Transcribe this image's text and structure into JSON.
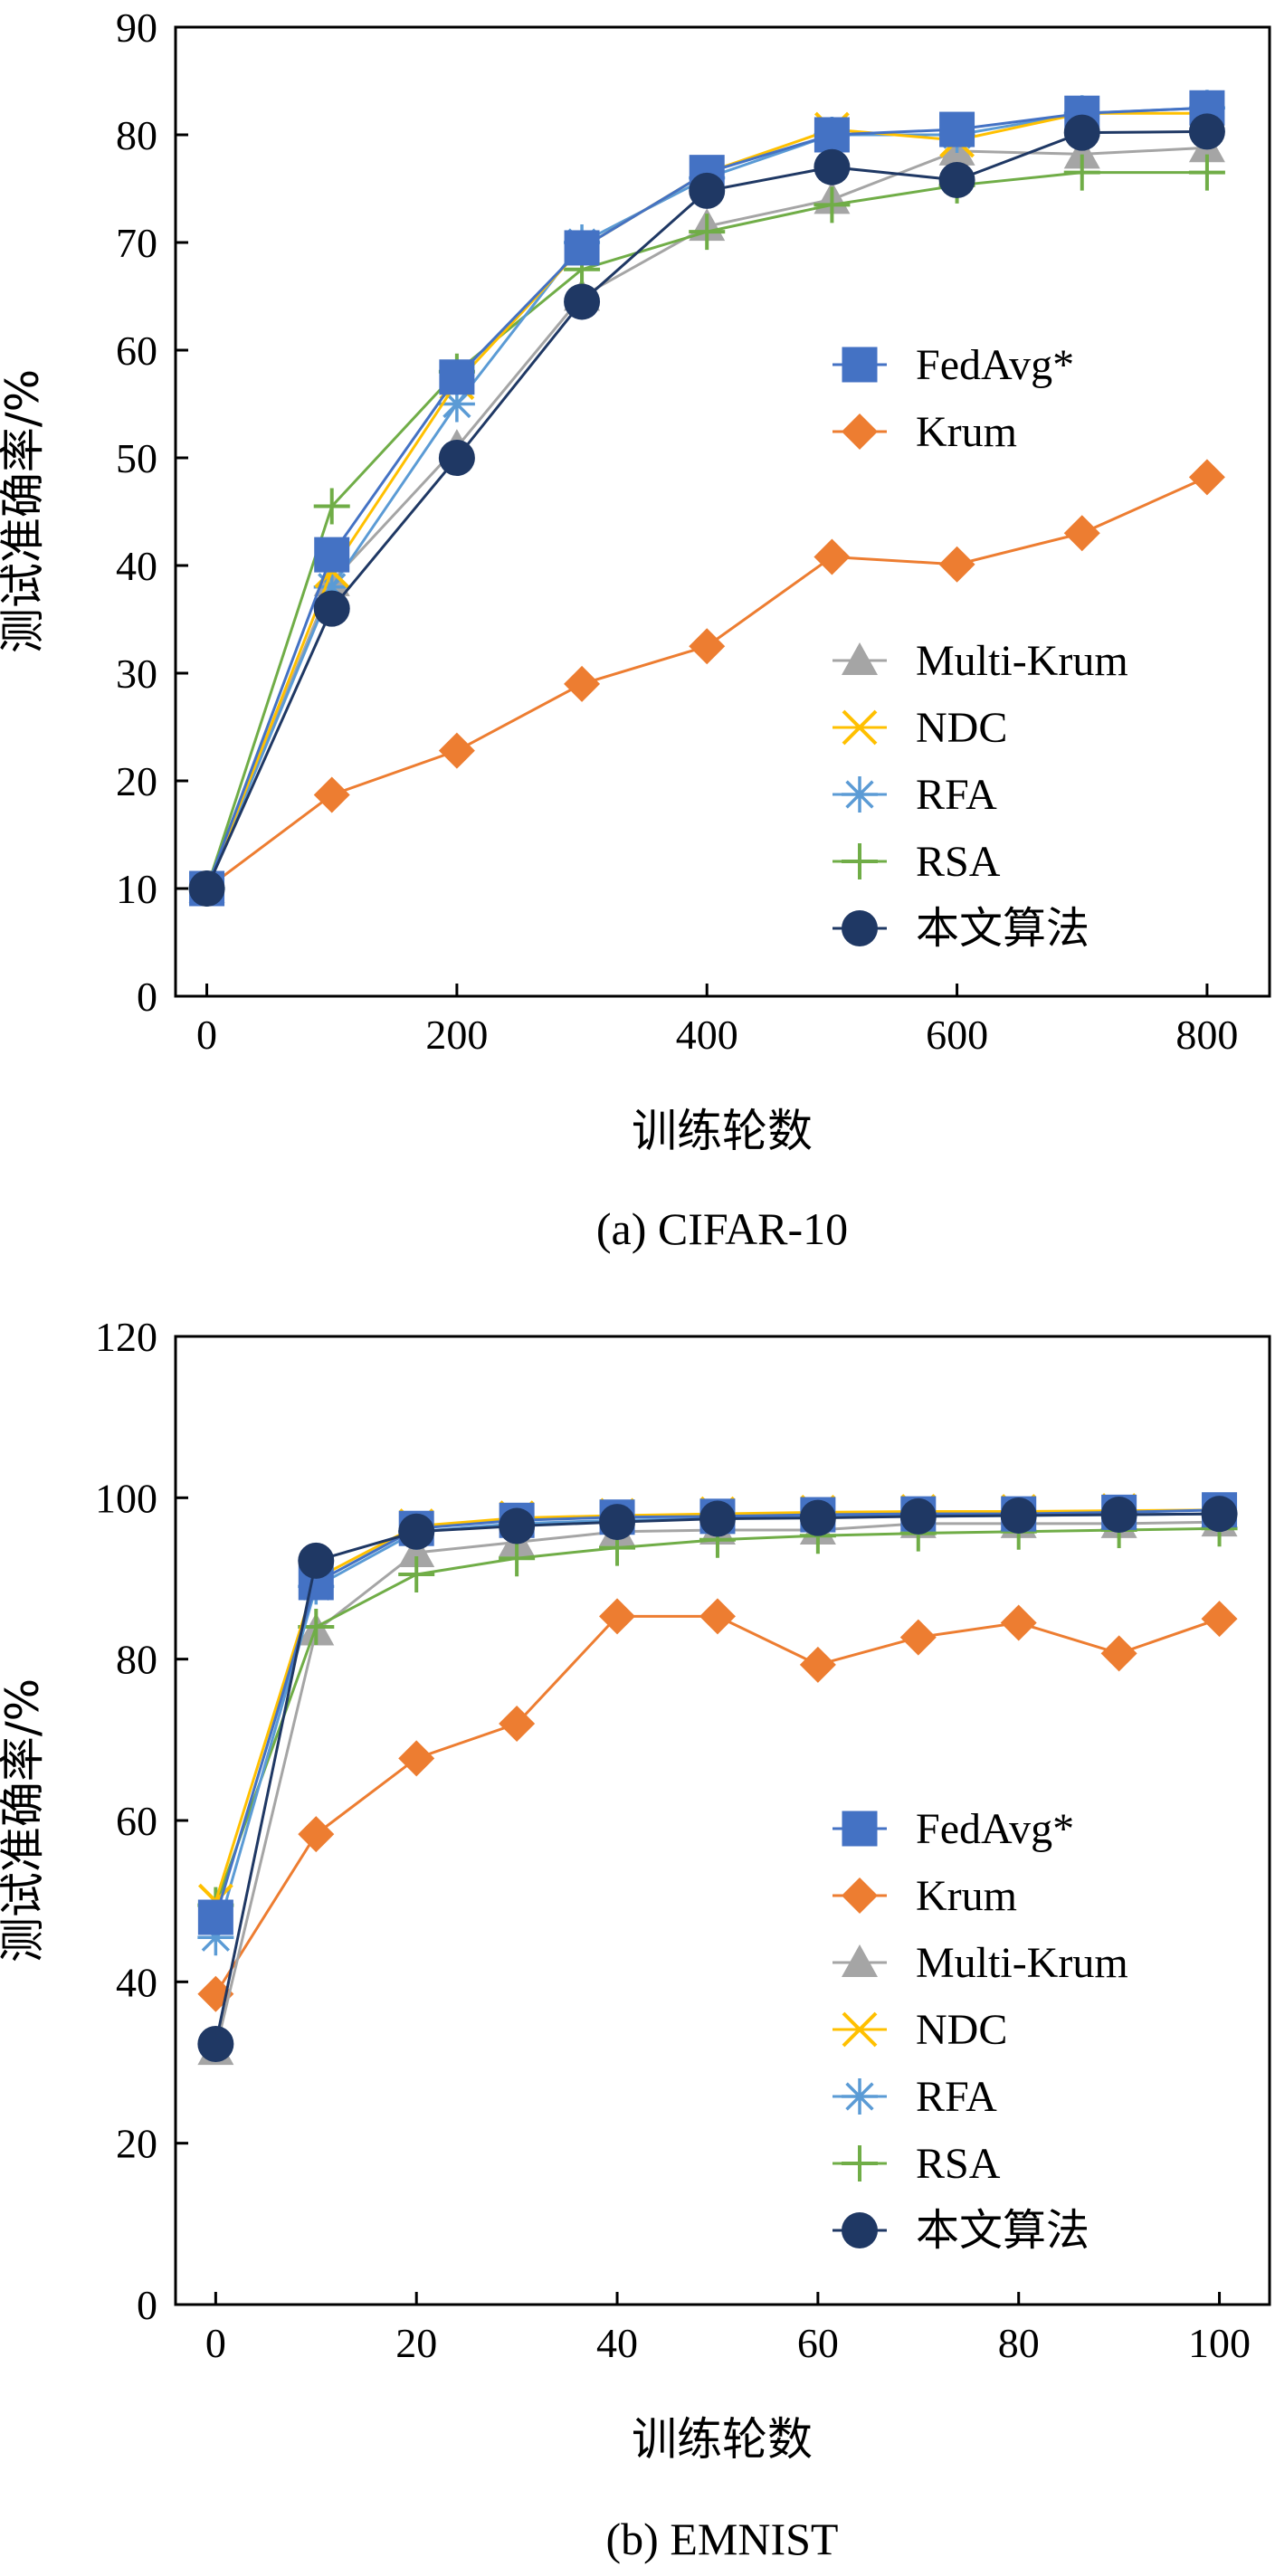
{
  "colors": {
    "FedAvg*": "#4472C4",
    "Krum": "#ED7D31",
    "Multi-Krum": "#A5A5A5",
    "NDC": "#FFC000",
    "RFA": "#5B9BD5",
    "RSA": "#70AD47",
    "本文算法": "#1F3864"
  },
  "markers": {
    "FedAvg*": "square",
    "Krum": "diamond",
    "Multi-Krum": "triangle",
    "NDC": "x",
    "RFA": "asterisk",
    "RSA": "plus",
    "本文算法": "circle"
  },
  "chart_data": [
    {
      "id": "cifar",
      "type": "line",
      "caption": "(a)  CIFAR-10",
      "xlabel": "训练轮数",
      "ylabel": "测试准确率/%",
      "xlim": [
        -25,
        850
      ],
      "ylim": [
        0,
        90
      ],
      "xticks": [
        0,
        200,
        400,
        600,
        800
      ],
      "yticks": [
        0,
        10,
        20,
        30,
        40,
        50,
        60,
        70,
        80,
        90
      ],
      "legend_location": "right, split into two groups",
      "legend_groups": [
        [
          "FedAvg*",
          "Krum"
        ],
        [
          "Multi-Krum",
          "NDC",
          "RFA",
          "RSA",
          "本文算法"
        ]
      ],
      "x": [
        0,
        100,
        200,
        300,
        400,
        500,
        600,
        700,
        800
      ],
      "series": [
        {
          "name": "FedAvg*",
          "values": [
            10,
            41,
            57.5,
            69.5,
            76.5,
            80,
            80.5,
            82,
            82.5
          ]
        },
        {
          "name": "Krum",
          "values": [
            10,
            18.7,
            22.8,
            29,
            32.5,
            40.8,
            40.1,
            43,
            48.2
          ]
        },
        {
          "name": "Multi-Krum",
          "values": [
            10,
            38.5,
            51,
            65,
            71.5,
            74,
            78.5,
            78.2,
            78.8
          ]
        },
        {
          "name": "NDC",
          "values": [
            10,
            39.5,
            57,
            69.5,
            76.5,
            80.5,
            79.5,
            82,
            82
          ]
        },
        {
          "name": "RFA",
          "values": [
            10,
            38,
            55,
            70,
            76,
            80,
            80,
            82,
            82.5
          ]
        },
        {
          "name": "RSA",
          "values": [
            10,
            45.5,
            58,
            67.5,
            71,
            73.5,
            75.3,
            76.5,
            76.5
          ]
        },
        {
          "name": "本文算法",
          "values": [
            10,
            36,
            50,
            64.5,
            74.8,
            77,
            75.8,
            80.2,
            80.3
          ]
        }
      ]
    },
    {
      "id": "emnist",
      "type": "line",
      "caption": "(b)  EMNIST",
      "xlabel": "训练轮数",
      "ylabel": "测试准确率/%",
      "xlim": [
        -4,
        105
      ],
      "ylim": [
        0,
        120
      ],
      "xticks": [
        0,
        20,
        40,
        60,
        80,
        100
      ],
      "yticks": [
        0,
        20,
        40,
        60,
        80,
        100,
        120
      ],
      "legend_location": "right",
      "legend_groups": [
        [
          "FedAvg*",
          "Krum",
          "Multi-Krum",
          "NDC",
          "RFA",
          "RSA",
          "本文算法"
        ]
      ],
      "x": [
        0,
        10,
        20,
        30,
        40,
        50,
        60,
        70,
        80,
        90,
        100
      ],
      "series": [
        {
          "name": "FedAvg*",
          "values": [
            48,
            89.5,
            96.2,
            97.2,
            97.6,
            97.7,
            97.9,
            98,
            98,
            98.2,
            98.5
          ]
        },
        {
          "name": "Krum",
          "values": [
            38.5,
            58.3,
            67.7,
            72,
            85.3,
            85.3,
            79.3,
            82.7,
            84.5,
            80.7,
            85
          ]
        },
        {
          "name": "Multi-Krum",
          "values": [
            31.5,
            83.5,
            93.2,
            94.5,
            95.8,
            96,
            96,
            96.8,
            96.8,
            96.8,
            97
          ]
        },
        {
          "name": "NDC",
          "values": [
            50,
            90,
            96.5,
            97.5,
            97.8,
            98,
            98.2,
            98.3,
            98.3,
            98.4,
            98.5
          ]
        },
        {
          "name": "RFA",
          "values": [
            45.5,
            89,
            95.8,
            96.8,
            97.2,
            97.4,
            97.6,
            97.7,
            97.8,
            97.9,
            98
          ]
        },
        {
          "name": "RSA",
          "values": [
            49.5,
            84,
            90.5,
            92.5,
            93.8,
            94.8,
            95.3,
            95.6,
            95.8,
            96,
            96.2
          ]
        },
        {
          "name": "本文算法",
          "values": [
            32.3,
            92.2,
            95.8,
            96.5,
            97,
            97.4,
            97.5,
            97.7,
            97.8,
            97.9,
            98
          ]
        }
      ]
    }
  ]
}
